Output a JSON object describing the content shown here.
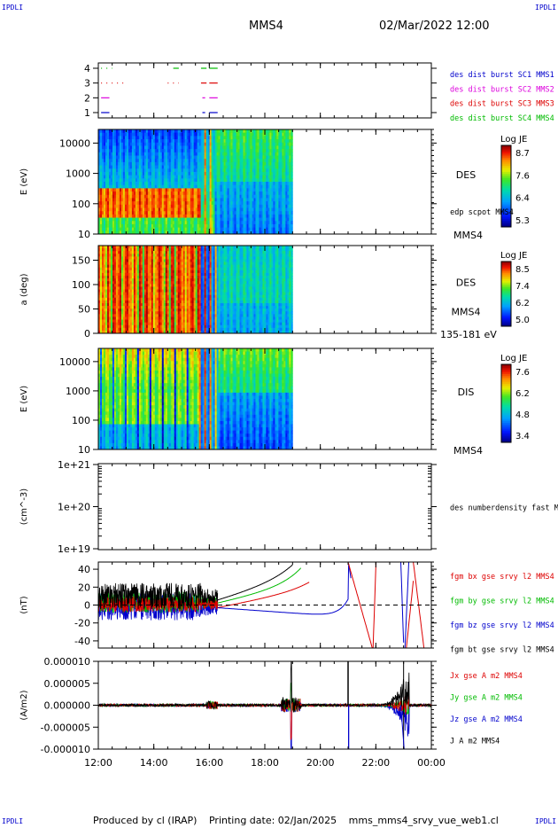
{
  "corners": {
    "tl": "IPDLI",
    "tr": "IPDLI",
    "bl": "IPDLI",
    "br": "IPDLI"
  },
  "header": {
    "spacecraft": "MMS4",
    "datetime": "02/Mar/2022 12:00"
  },
  "footer": {
    "produced_by": "Produced by cl (IRAP)",
    "printing_date": "Printing date: 02/Jan/2025",
    "filename": "mms_mms4_srvy_vue_web1.cl"
  },
  "x_axis": {
    "ticks": [
      "12:00",
      "14:00",
      "16:00",
      "18:00",
      "20:00",
      "22:00",
      "00:00"
    ],
    "range_hours": [
      12,
      24
    ]
  },
  "colors": {
    "blue": "#0000cc",
    "magenta": "#dd00dd",
    "red": "#dd0000",
    "green": "#00bb00",
    "black": "#000000"
  },
  "chart_data": [
    {
      "id": "availability",
      "type": "scatter",
      "ylabel": "",
      "y_ticks": [
        "1",
        "2",
        "3",
        "4"
      ],
      "series": [
        {
          "name": "des dist burst SC1 MMS1",
          "color": "#0000cc",
          "y": 1,
          "intervals": [
            [
              12.1,
              12.4
            ],
            [
              15.75,
              15.85
            ],
            [
              16.0,
              16.3
            ]
          ]
        },
        {
          "name": "des dist burst SC2 MMS2",
          "color": "#dd00dd",
          "y": 2,
          "intervals": [
            [
              12.1,
              12.4
            ],
            [
              15.75,
              15.85
            ],
            [
              16.0,
              16.3
            ]
          ]
        },
        {
          "name": "des dist burst SC3 MMS3",
          "color": "#dd0000",
          "y": 3,
          "intervals": [
            [
              12.1,
              12.9
            ],
            [
              14.5,
              14.9
            ],
            [
              15.7,
              15.9
            ],
            [
              16.0,
              16.3
            ]
          ]
        },
        {
          "name": "des dist burst SC4 MMS4",
          "color": "#00bb00",
          "y": 4,
          "intervals": [
            [
              12.1,
              12.5
            ],
            [
              14.7,
              14.9
            ],
            [
              15.7,
              15.9
            ],
            [
              16.0,
              16.3
            ]
          ]
        }
      ]
    },
    {
      "id": "des-energy",
      "type": "heatmap",
      "ylabel": "E (eV)",
      "y_ticks": [
        "10",
        "100",
        "1000",
        "10000"
      ],
      "label_main": "DES",
      "label_sub": "edp scpot MMS4",
      "label_bottom": "MMS4",
      "colorbar": {
        "title": "Log JE",
        "ticks": [
          "8.7",
          "7.6",
          "6.4",
          "5.3"
        ],
        "range": [
          5.3,
          8.7
        ]
      },
      "data_end_hours": 19.0
    },
    {
      "id": "des-pitch",
      "type": "heatmap",
      "ylabel": "a (deg)",
      "y_ticks": [
        "0",
        "50",
        "100",
        "150"
      ],
      "label_main": "DES",
      "label_sub": "MMS4",
      "label_bottom": "135-181 eV",
      "colorbar": {
        "title": "Log JE",
        "ticks": [
          "8.5",
          "7.4",
          "6.2",
          "5.0"
        ],
        "range": [
          5.0,
          8.5
        ]
      },
      "data_end_hours": 19.0
    },
    {
      "id": "dis-energy",
      "type": "heatmap",
      "ylabel": "E (eV)",
      "y_ticks": [
        "10",
        "100",
        "1000",
        "10000"
      ],
      "label_main": "DIS",
      "label_bottom": "MMS4",
      "colorbar": {
        "title": "Log JE",
        "ticks": [
          "7.6",
          "6.2",
          "4.8",
          "3.4"
        ],
        "range": [
          3.4,
          7.6
        ]
      },
      "data_end_hours": 19.0
    },
    {
      "id": "density",
      "type": "line",
      "ylabel": "(cm^-3)",
      "y_ticks": [
        "1e+19",
        "1e+20",
        "1e+21"
      ],
      "label_main": "des numberdensity fast M",
      "series": []
    },
    {
      "id": "magnetic-field",
      "type": "line",
      "ylabel": "(nT)",
      "y_ticks": [
        "-40",
        "-20",
        "0",
        "20",
        "40"
      ],
      "ylim": [
        -48,
        48
      ],
      "series": [
        {
          "name": "fgm bx gse srvy l2 MMS4",
          "color": "#dd0000"
        },
        {
          "name": "fgm by gse srvy l2 MMS4",
          "color": "#00bb00"
        },
        {
          "name": "fgm bz gse srvy l2 MMS4",
          "color": "#0000cc"
        },
        {
          "name": "fgm bt gse srvy l2 MMS4",
          "color": "#000000"
        }
      ]
    },
    {
      "id": "current-density",
      "type": "line",
      "ylabel": "(A/m2)",
      "y_ticks": [
        "-0.000010",
        "-0.000005",
        "0.000000",
        "0.000005",
        "0.000010"
      ],
      "ylim": [
        -1e-05,
        1e-05
      ],
      "series": [
        {
          "name": "Jx gse A m2 MMS4",
          "color": "#dd0000"
        },
        {
          "name": "Jy gse A m2 MMS4",
          "color": "#00bb00"
        },
        {
          "name": "Jz gse A m2 MMS4",
          "color": "#0000cc"
        },
        {
          "name": "J A m2 MMS4",
          "color": "#000000"
        }
      ]
    }
  ]
}
